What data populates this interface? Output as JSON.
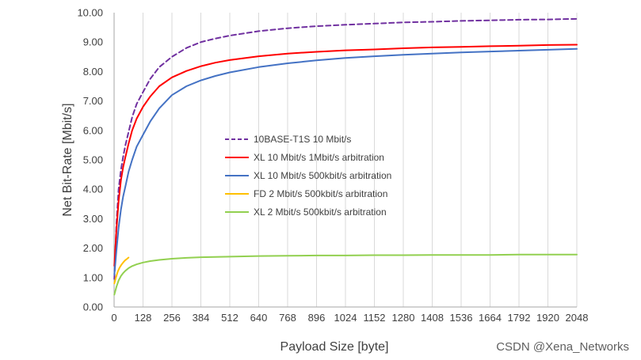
{
  "chart_data": {
    "type": "line",
    "xlabel": "Payload Size [byte]",
    "ylabel": "Net Bit-Rate [Mbit/s]",
    "xlim": [
      0,
      2048
    ],
    "ylim": [
      0,
      10
    ],
    "xticks": [
      0,
      128,
      256,
      384,
      512,
      640,
      768,
      896,
      1024,
      1152,
      1280,
      1408,
      1536,
      1664,
      1792,
      1920,
      2048
    ],
    "xtick_labels": [
      "0",
      "128",
      "256",
      "384",
      "512",
      "640",
      "768",
      "896",
      "1024",
      "1152",
      "1280",
      "1408",
      "1536",
      "1664",
      "1792",
      "1920",
      "2048"
    ],
    "yticks": [
      0,
      1,
      2,
      3,
      4,
      5,
      6,
      7,
      8,
      9,
      10
    ],
    "ytick_labels": [
      "0.00",
      "1.00",
      "2.00",
      "3.00",
      "4.00",
      "5.00",
      "6.00",
      "7.00",
      "8.00",
      "9.00",
      "10.00"
    ],
    "grid": "vertical",
    "legend_position": "center",
    "series": [
      {
        "name": "10BASE-T1S 10 Mbit/s",
        "color": "#7030a0",
        "dash": true,
        "x": [
          1,
          10,
          20,
          30,
          40,
          50,
          64,
          80,
          100,
          128,
          160,
          200,
          256,
          320,
          384,
          448,
          512,
          640,
          768,
          896,
          1024,
          1152,
          1280,
          1408,
          1536,
          1664,
          1792,
          1920,
          2048
        ],
        "y": [
          0.95,
          2.8,
          4.0,
          4.65,
          5.1,
          5.5,
          5.95,
          6.45,
          6.9,
          7.3,
          7.75,
          8.15,
          8.5,
          8.8,
          9.0,
          9.12,
          9.22,
          9.37,
          9.47,
          9.54,
          9.59,
          9.63,
          9.67,
          9.69,
          9.72,
          9.74,
          9.76,
          9.77,
          9.79
        ]
      },
      {
        "name": "XL 10 Mbit/s 1Mbit/s arbitration",
        "color": "#ff0000",
        "dash": false,
        "x": [
          1,
          10,
          20,
          30,
          40,
          50,
          64,
          80,
          100,
          128,
          160,
          200,
          256,
          320,
          384,
          448,
          512,
          640,
          768,
          896,
          1024,
          1152,
          1280,
          1408,
          1536,
          1664,
          1792,
          1920,
          2048
        ],
        "y": [
          1.4,
          2.6,
          3.6,
          4.3,
          4.75,
          5.1,
          5.55,
          6.0,
          6.4,
          6.8,
          7.15,
          7.5,
          7.8,
          8.02,
          8.18,
          8.3,
          8.39,
          8.52,
          8.61,
          8.67,
          8.72,
          8.75,
          8.79,
          8.82,
          8.84,
          8.86,
          8.88,
          8.9,
          8.91
        ]
      },
      {
        "name": "XL 10 Mbit/s 500kbit/s arbitration",
        "color": "#4472c4",
        "dash": false,
        "x": [
          1,
          10,
          20,
          30,
          40,
          50,
          64,
          80,
          100,
          128,
          160,
          200,
          256,
          320,
          384,
          448,
          512,
          640,
          768,
          896,
          1024,
          1152,
          1280,
          1408,
          1536,
          1664,
          1792,
          1920,
          2048
        ],
        "y": [
          1.1,
          1.9,
          2.7,
          3.3,
          3.75,
          4.1,
          4.6,
          5.0,
          5.45,
          5.85,
          6.3,
          6.75,
          7.2,
          7.5,
          7.7,
          7.85,
          7.97,
          8.15,
          8.28,
          8.38,
          8.46,
          8.52,
          8.57,
          8.61,
          8.65,
          8.68,
          8.71,
          8.74,
          8.77
        ]
      },
      {
        "name": "FD 2 Mbit/s 500kbit/s arbitration",
        "color": "#ffc000",
        "dash": false,
        "x": [
          1,
          8,
          16,
          24,
          32,
          40,
          48,
          56,
          64
        ],
        "y": [
          0.8,
          1.0,
          1.2,
          1.33,
          1.43,
          1.51,
          1.58,
          1.63,
          1.68
        ]
      },
      {
        "name": "XL 2 Mbit/s 500kbit/s arbitration",
        "color": "#92d050",
        "dash": false,
        "x": [
          1,
          10,
          20,
          30,
          40,
          50,
          64,
          80,
          100,
          128,
          160,
          200,
          256,
          320,
          384,
          448,
          512,
          640,
          768,
          896,
          1024,
          1152,
          1280,
          1408,
          1536,
          1664,
          1792,
          1920,
          2048
        ],
        "y": [
          0.42,
          0.68,
          0.9,
          1.05,
          1.15,
          1.23,
          1.32,
          1.39,
          1.45,
          1.51,
          1.56,
          1.6,
          1.64,
          1.67,
          1.69,
          1.7,
          1.71,
          1.73,
          1.74,
          1.75,
          1.75,
          1.76,
          1.76,
          1.77,
          1.77,
          1.77,
          1.78,
          1.78,
          1.78
        ]
      }
    ]
  },
  "watermark": "CSDN @Xena_Networks"
}
